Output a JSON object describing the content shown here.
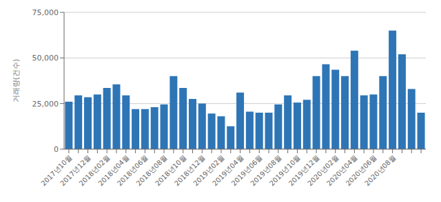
{
  "chart_data": {
    "type": "bar",
    "ylabel": "거래량(건수)",
    "categories": [
      "2017년10월",
      null,
      "2017년12월",
      null,
      "2018년02월",
      null,
      "2018년04월",
      null,
      "2018년06월",
      null,
      "2018년08월",
      null,
      "2018년10월",
      null,
      "2018년12월",
      null,
      "2019년02월",
      null,
      "2019년04월",
      null,
      "2019년06월",
      null,
      "2019년08월",
      null,
      "2019년10월",
      null,
      "2019년12월",
      null,
      "2020년02월",
      null,
      "2020년04월",
      null,
      "2020년06월",
      null,
      "2020년08월",
      null,
      null,
      null
    ],
    "values": [
      26000,
      29500,
      28500,
      30000,
      33500,
      35500,
      29500,
      22000,
      22000,
      23000,
      24500,
      40000,
      33500,
      27500,
      25000,
      19500,
      18000,
      12500,
      31000,
      20500,
      20000,
      20000,
      24500,
      29500,
      25500,
      27000,
      40000,
      46500,
      43500,
      40000,
      54000,
      29500,
      30000,
      40000,
      65000,
      52000,
      33000,
      20000
    ],
    "color": "#2e75b6",
    "ylim": [
      0,
      75000
    ],
    "yticks": [
      0,
      {
        "value": 25000,
        "label": "25,000"
      },
      {
        "value": 50000,
        "label": "50,000"
      },
      {
        "value": 75000,
        "label": "75,000"
      }
    ],
    "grid": true
  }
}
